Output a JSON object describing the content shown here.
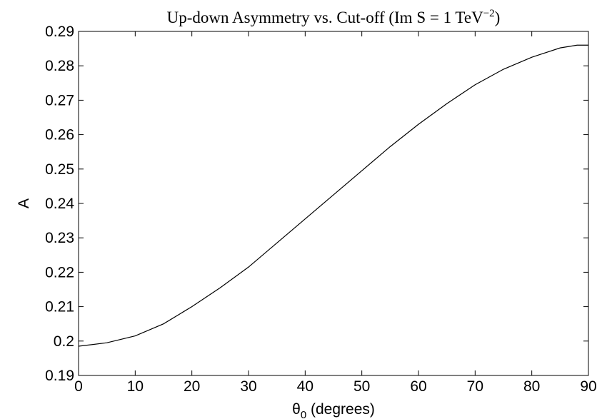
{
  "chart_data": {
    "type": "line",
    "title": {
      "text": "Up-down Asymmetry vs. Cut-off (Im S = 1 TeV",
      "sup": "−2",
      "tail": ")"
    },
    "x_label": {
      "symbol": "θ",
      "sub": "0",
      "text": " (degrees)"
    },
    "y_label": "A",
    "x": [
      0,
      5,
      10,
      15,
      20,
      25,
      30,
      35,
      40,
      45,
      50,
      55,
      60,
      65,
      70,
      75,
      80,
      85,
      88,
      90
    ],
    "series": [
      {
        "name": "A",
        "color": "#000000",
        "values": [
          0.1985,
          0.1995,
          0.2015,
          0.205,
          0.21,
          0.2155,
          0.2215,
          0.2285,
          0.2355,
          0.2425,
          0.2495,
          0.2565,
          0.263,
          0.269,
          0.2745,
          0.279,
          0.2825,
          0.2852,
          0.286,
          0.286
        ]
      }
    ],
    "xlim": [
      0,
      90
    ],
    "xticks": [
      0,
      10,
      20,
      30,
      40,
      50,
      60,
      70,
      80,
      90
    ],
    "ylim": [
      0.19,
      0.29
    ],
    "yticks": [
      0.19,
      0.2,
      0.21,
      0.22,
      0.23,
      0.24,
      0.25,
      0.26,
      0.27,
      0.28,
      0.29
    ],
    "grid": false
  }
}
